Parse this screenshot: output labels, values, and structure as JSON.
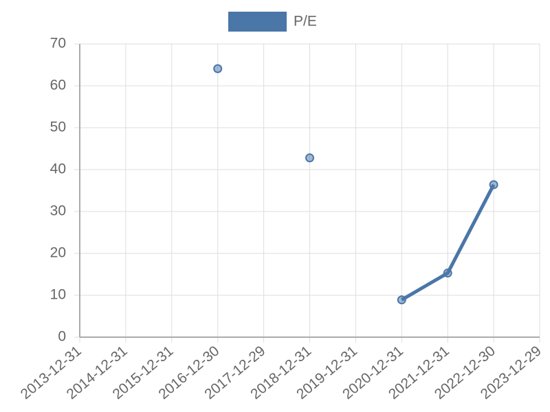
{
  "chart_data": {
    "type": "line",
    "categories": [
      "2013-12-31",
      "2014-12-31",
      "2015-12-31",
      "2016-12-30",
      "2017-12-29",
      "2018-12-31",
      "2019-12-31",
      "2020-12-31",
      "2021-12-31",
      "2022-12-30",
      "2023-12-29"
    ],
    "series": [
      {
        "name": "P/E",
        "color": "#4a76a8",
        "values": [
          null,
          null,
          null,
          64.1,
          null,
          42.8,
          null,
          8.9,
          15.3,
          36.4,
          null
        ]
      }
    ],
    "ylim": [
      0,
      70
    ],
    "yticks": [
      0,
      10,
      20,
      30,
      40,
      50,
      60,
      70
    ],
    "grid": true,
    "legend": "top"
  }
}
